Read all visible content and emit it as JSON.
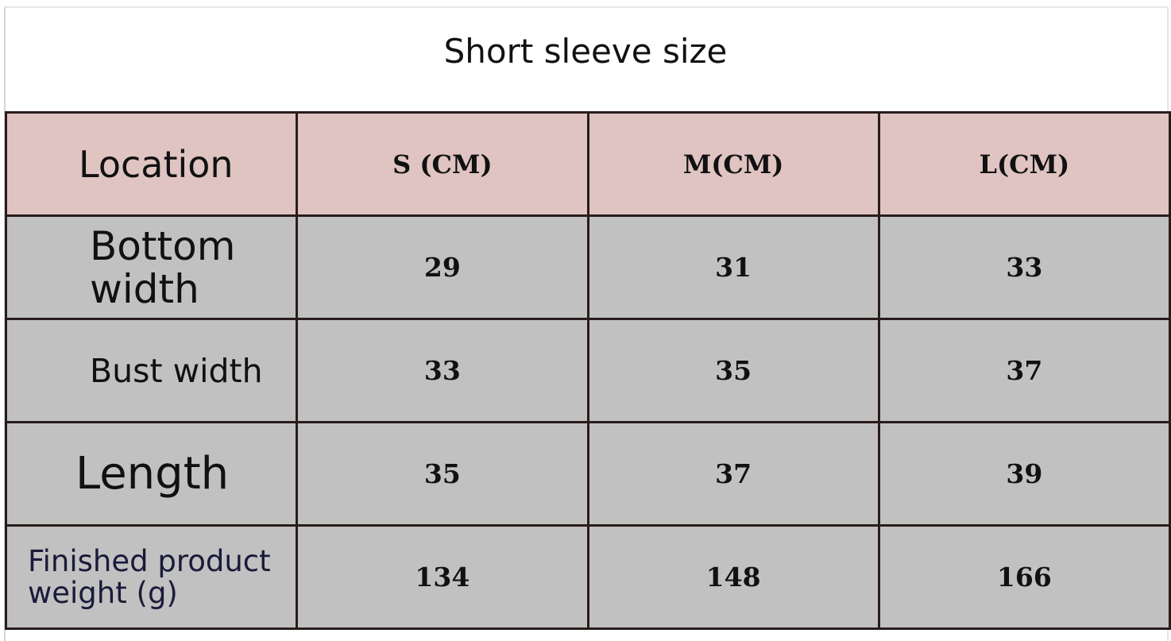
{
  "title": "Short sleeve size",
  "table": {
    "headers": [
      "Location",
      "S (CM)",
      "M(CM)",
      "L(CM)"
    ],
    "rows": [
      {
        "label": "Bottom width",
        "values": [
          "29",
          "31",
          "33"
        ]
      },
      {
        "label": "Bust width",
        "values": [
          "33",
          "35",
          "37"
        ]
      },
      {
        "label": "Length",
        "values": [
          "35",
          "37",
          "39"
        ]
      },
      {
        "label": "Finished product weight (g)",
        "values": [
          "134",
          "148",
          "166"
        ]
      }
    ]
  },
  "colors": {
    "header_bg": "#dfc4c1",
    "body_bg": "#c1c1c1",
    "border": "#2a1c1c"
  }
}
